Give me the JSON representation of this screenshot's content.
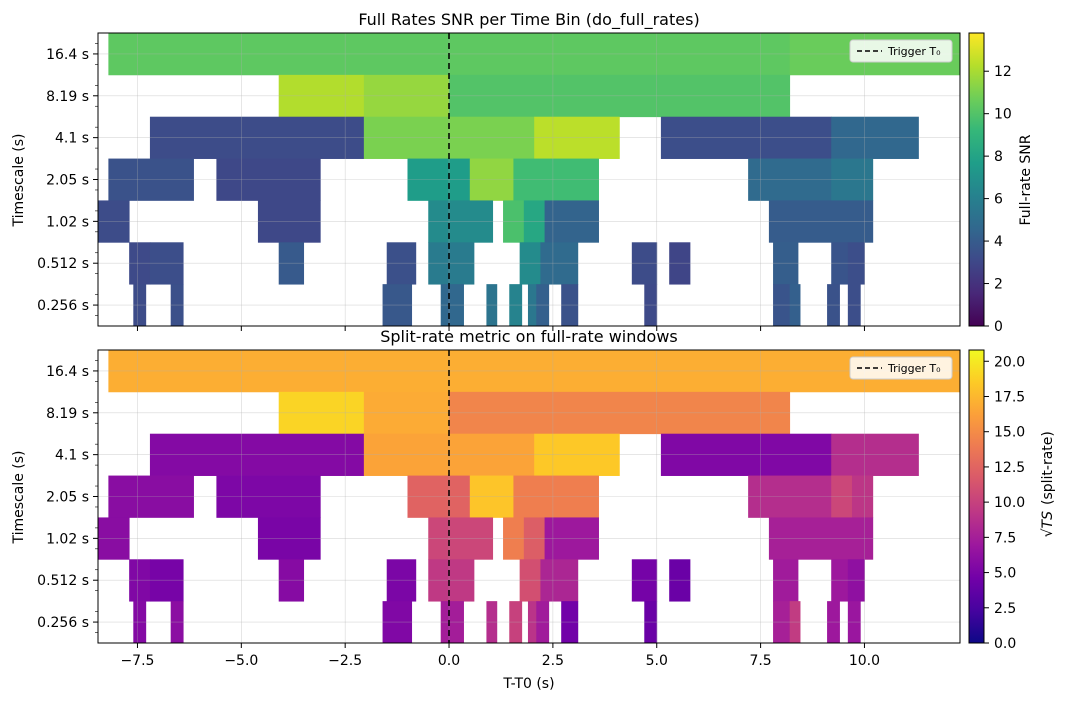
{
  "chart_data": [
    {
      "type": "heatmap",
      "title": "Full Rates SNR per Time Bin (do_full_rates)",
      "xlabel": "",
      "ylabel": "Timescale (s)",
      "colorbar_label": "Full-rate SNR",
      "colormap": "viridis",
      "clim": [
        0,
        13.8
      ],
      "colorbar_ticks": [
        "0",
        "2",
        "4",
        "6",
        "8",
        "10",
        "12"
      ],
      "legend": {
        "label": "Trigger T₀",
        "position": "top-right"
      },
      "trigger_x": 0.0,
      "xlim": [
        -8.45,
        12.3
      ],
      "rows": [
        "16.4 s",
        "8.19 s",
        "4.1 s",
        "2.05 s",
        "1.02 s",
        "0.512 s",
        "0.256 s"
      ],
      "cells": [
        {
          "row": 0,
          "x0": -8.2,
          "x1": 8.2,
          "v": 10.3
        },
        {
          "row": 0,
          "x0": 8.2,
          "x1": 12.3,
          "v": 10.6
        },
        {
          "row": 1,
          "x0": -4.1,
          "x1": -2.05,
          "v": 12.2
        },
        {
          "row": 1,
          "x0": -2.05,
          "x1": 0.0,
          "v": 11.6
        },
        {
          "row": 1,
          "x0": 0.0,
          "x1": 8.2,
          "v": 10.0
        },
        {
          "row": 2,
          "x0": -7.2,
          "x1": -2.05,
          "v": 3.2
        },
        {
          "row": 2,
          "x0": -2.05,
          "x1": 2.05,
          "v": 11.0
        },
        {
          "row": 2,
          "x0": 2.05,
          "x1": 4.1,
          "v": 12.4
        },
        {
          "row": 2,
          "x0": 5.1,
          "x1": 9.2,
          "v": 3.3
        },
        {
          "row": 2,
          "x0": 9.2,
          "x1": 11.3,
          "v": 4.6
        },
        {
          "row": 3,
          "x0": -8.2,
          "x1": -6.15,
          "v": 3.5
        },
        {
          "row": 3,
          "x0": -5.6,
          "x1": -3.1,
          "v": 3.0
        },
        {
          "row": 3,
          "x0": -1.0,
          "x1": 0.5,
          "v": 7.6
        },
        {
          "row": 3,
          "x0": 0.5,
          "x1": 1.55,
          "v": 11.5
        },
        {
          "row": 3,
          "x0": 1.55,
          "x1": 3.6,
          "v": 9.5
        },
        {
          "row": 3,
          "x0": 7.2,
          "x1": 9.2,
          "v": 4.8
        },
        {
          "row": 3,
          "x0": 9.2,
          "x1": 10.2,
          "v": 5.5
        },
        {
          "row": 4,
          "x0": -8.45,
          "x1": -7.7,
          "v": 3.2
        },
        {
          "row": 4,
          "x0": -4.6,
          "x1": -3.1,
          "v": 3.0
        },
        {
          "row": 4,
          "x0": -0.5,
          "x1": 1.05,
          "v": 6.6
        },
        {
          "row": 4,
          "x0": 1.3,
          "x1": 1.8,
          "v": 9.8
        },
        {
          "row": 4,
          "x0": 1.8,
          "x1": 2.3,
          "v": 8.2
        },
        {
          "row": 4,
          "x0": 2.3,
          "x1": 3.6,
          "v": 4.4
        },
        {
          "row": 4,
          "x0": 7.7,
          "x1": 10.2,
          "v": 4.0
        },
        {
          "row": 5,
          "x0": -7.7,
          "x1": -7.2,
          "v": 3.1
        },
        {
          "row": 5,
          "x0": -7.2,
          "x1": -6.4,
          "v": 3.3
        },
        {
          "row": 5,
          "x0": -4.1,
          "x1": -3.5,
          "v": 3.9
        },
        {
          "row": 5,
          "x0": -1.5,
          "x1": -0.8,
          "v": 3.4
        },
        {
          "row": 5,
          "x0": -0.5,
          "x1": 0.6,
          "v": 5.7
        },
        {
          "row": 5,
          "x0": 1.7,
          "x1": 2.2,
          "v": 6.6
        },
        {
          "row": 5,
          "x0": 2.2,
          "x1": 3.1,
          "v": 4.8
        },
        {
          "row": 5,
          "x0": 4.4,
          "x1": 5.0,
          "v": 3.2
        },
        {
          "row": 5,
          "x0": 5.3,
          "x1": 5.8,
          "v": 2.9
        },
        {
          "row": 5,
          "x0": 7.8,
          "x1": 8.4,
          "v": 4.1
        },
        {
          "row": 5,
          "x0": 9.2,
          "x1": 9.6,
          "v": 3.6
        },
        {
          "row": 5,
          "x0": 9.6,
          "x1": 10.0,
          "v": 3.3
        },
        {
          "row": 6,
          "x0": -7.6,
          "x1": -7.3,
          "v": 3.2
        },
        {
          "row": 6,
          "x0": -6.7,
          "x1": -6.4,
          "v": 3.4
        },
        {
          "row": 6,
          "x0": -1.6,
          "x1": -0.9,
          "v": 3.8
        },
        {
          "row": 6,
          "x0": -0.2,
          "x1": 0.35,
          "v": 4.6
        },
        {
          "row": 6,
          "x0": 0.9,
          "x1": 1.15,
          "v": 5.3
        },
        {
          "row": 6,
          "x0": 1.45,
          "x1": 1.75,
          "v": 6.2
        },
        {
          "row": 6,
          "x0": 1.9,
          "x1": 2.1,
          "v": 5.5
        },
        {
          "row": 6,
          "x0": 2.1,
          "x1": 2.4,
          "v": 4.2
        },
        {
          "row": 6,
          "x0": 2.7,
          "x1": 3.1,
          "v": 3.5
        },
        {
          "row": 6,
          "x0": 4.7,
          "x1": 5.0,
          "v": 3.1
        },
        {
          "row": 6,
          "x0": 7.8,
          "x1": 8.2,
          "v": 3.6
        },
        {
          "row": 6,
          "x0": 8.2,
          "x1": 8.45,
          "v": 4.2
        },
        {
          "row": 6,
          "x0": 9.1,
          "x1": 9.4,
          "v": 3.5
        },
        {
          "row": 6,
          "x0": 9.6,
          "x1": 9.9,
          "v": 3.3
        }
      ]
    },
    {
      "type": "heatmap",
      "title": "Split-rate metric on full-rate windows",
      "xlabel": "T-T0 (s)",
      "ylabel": "Timescale (s)",
      "colorbar_label": "(split-rate)",
      "colorbar_label_math": "√TS",
      "colormap": "plasma",
      "clim": [
        0,
        20.8
      ],
      "colorbar_ticks": [
        "0.0",
        "2.5",
        "5.0",
        "7.5",
        "10.0",
        "12.5",
        "15.0",
        "17.5",
        "20.0"
      ],
      "legend": {
        "label": "Trigger T₀",
        "position": "top-right"
      },
      "trigger_x": 0.0,
      "xlim": [
        -8.45,
        12.3
      ],
      "xticks": [
        "−7.5",
        "−5.0",
        "−2.5",
        "0.0",
        "2.5",
        "5.0",
        "7.5",
        "10.0"
      ],
      "xtick_values": [
        -7.5,
        -5.0,
        -2.5,
        0.0,
        2.5,
        5.0,
        7.5,
        10.0
      ],
      "rows": [
        "16.4 s",
        "8.19 s",
        "4.1 s",
        "2.05 s",
        "1.02 s",
        "0.512 s",
        "0.256 s"
      ],
      "cells": [
        {
          "row": 0,
          "x0": -8.2,
          "x1": 12.3,
          "v": 17.0
        },
        {
          "row": 1,
          "x0": -4.1,
          "x1": -2.05,
          "v": 19.0
        },
        {
          "row": 1,
          "x0": -2.05,
          "x1": 0.0,
          "v": 16.8
        },
        {
          "row": 1,
          "x0": 0.0,
          "x1": 8.2,
          "v": 14.6
        },
        {
          "row": 2,
          "x0": -7.2,
          "x1": -2.05,
          "v": 5.6
        },
        {
          "row": 2,
          "x0": -2.05,
          "x1": 2.05,
          "v": 16.4
        },
        {
          "row": 2,
          "x0": 2.05,
          "x1": 4.1,
          "v": 18.4
        },
        {
          "row": 2,
          "x0": 5.1,
          "x1": 9.2,
          "v": 5.4
        },
        {
          "row": 2,
          "x0": 9.2,
          "x1": 11.3,
          "v": 8.6
        },
        {
          "row": 3,
          "x0": -8.2,
          "x1": -6.15,
          "v": 5.9
        },
        {
          "row": 3,
          "x0": -5.6,
          "x1": -3.1,
          "v": 5.2
        },
        {
          "row": 3,
          "x0": -1.0,
          "x1": 0.5,
          "v": 12.4
        },
        {
          "row": 3,
          "x0": 0.5,
          "x1": 1.55,
          "v": 18.2
        },
        {
          "row": 3,
          "x0": 1.55,
          "x1": 3.6,
          "v": 14.2
        },
        {
          "row": 3,
          "x0": 7.2,
          "x1": 9.2,
          "v": 8.6
        },
        {
          "row": 3,
          "x0": 9.2,
          "x1": 9.7,
          "v": 10.4
        },
        {
          "row": 3,
          "x0": 9.7,
          "x1": 10.2,
          "v": 9.2
        },
        {
          "row": 4,
          "x0": -8.45,
          "x1": -7.7,
          "v": 5.9
        },
        {
          "row": 4,
          "x0": -4.6,
          "x1": -3.1,
          "v": 5.0
        },
        {
          "row": 4,
          "x0": -0.5,
          "x1": 1.05,
          "v": 10.4
        },
        {
          "row": 4,
          "x0": 1.3,
          "x1": 1.8,
          "v": 14.2
        },
        {
          "row": 4,
          "x0": 1.8,
          "x1": 2.3,
          "v": 12.0
        },
        {
          "row": 4,
          "x0": 2.3,
          "x1": 3.6,
          "v": 7.0
        },
        {
          "row": 4,
          "x0": 7.7,
          "x1": 10.2,
          "v": 7.6
        },
        {
          "row": 5,
          "x0": -7.7,
          "x1": -7.2,
          "v": 5.4
        },
        {
          "row": 5,
          "x0": -7.2,
          "x1": -6.4,
          "v": 4.9
        },
        {
          "row": 5,
          "x0": -4.1,
          "x1": -3.5,
          "v": 5.7
        },
        {
          "row": 5,
          "x0": -1.5,
          "x1": -0.8,
          "v": 5.1
        },
        {
          "row": 5,
          "x0": -0.5,
          "x1": 0.6,
          "v": 9.4
        },
        {
          "row": 5,
          "x0": 1.7,
          "x1": 2.2,
          "v": 11.0
        },
        {
          "row": 5,
          "x0": 2.2,
          "x1": 3.1,
          "v": 8.0
        },
        {
          "row": 5,
          "x0": 4.4,
          "x1": 5.0,
          "v": 4.8
        },
        {
          "row": 5,
          "x0": 5.3,
          "x1": 5.8,
          "v": 4.2
        },
        {
          "row": 5,
          "x0": 7.8,
          "x1": 8.4,
          "v": 7.2
        },
        {
          "row": 5,
          "x0": 9.2,
          "x1": 9.6,
          "v": 7.0
        },
        {
          "row": 5,
          "x0": 9.6,
          "x1": 10.0,
          "v": 6.2
        },
        {
          "row": 6,
          "x0": -7.6,
          "x1": -7.3,
          "v": 5.6
        },
        {
          "row": 6,
          "x0": -6.7,
          "x1": -6.4,
          "v": 6.0
        },
        {
          "row": 6,
          "x0": -1.6,
          "x1": -0.9,
          "v": 5.4
        },
        {
          "row": 6,
          "x0": -0.2,
          "x1": 0.35,
          "v": 7.4
        },
        {
          "row": 6,
          "x0": 0.9,
          "x1": 1.15,
          "v": 8.6
        },
        {
          "row": 6,
          "x0": 1.45,
          "x1": 1.75,
          "v": 10.0
        },
        {
          "row": 6,
          "x0": 1.9,
          "x1": 2.1,
          "v": 9.0
        },
        {
          "row": 6,
          "x0": 2.1,
          "x1": 2.4,
          "v": 7.2
        },
        {
          "row": 6,
          "x0": 2.7,
          "x1": 3.1,
          "v": 4.6
        },
        {
          "row": 6,
          "x0": 4.7,
          "x1": 5.0,
          "v": 4.2
        },
        {
          "row": 6,
          "x0": 7.8,
          "x1": 8.2,
          "v": 7.6
        },
        {
          "row": 6,
          "x0": 8.2,
          "x1": 8.45,
          "v": 9.6
        },
        {
          "row": 6,
          "x0": 9.1,
          "x1": 9.4,
          "v": 7.0
        },
        {
          "row": 6,
          "x0": 9.6,
          "x1": 9.9,
          "v": 6.8
        }
      ]
    }
  ]
}
